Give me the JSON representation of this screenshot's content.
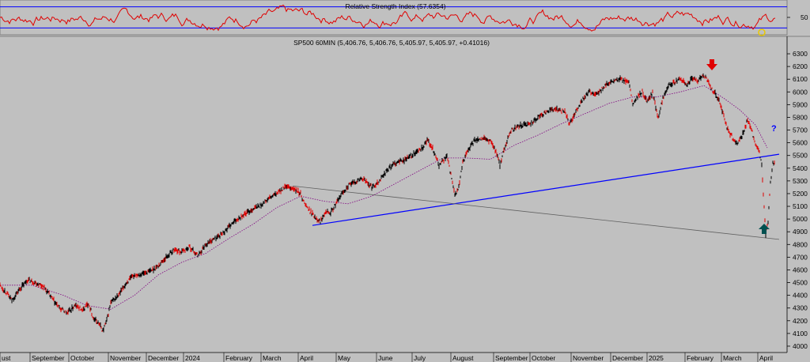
{
  "chart_data": [
    {
      "type": "line",
      "title": "Relative Strength Index (57.6354)",
      "series": [
        {
          "name": "RSI",
          "values": []
        }
      ],
      "ylim": [
        20,
        80
      ],
      "reference_levels": [
        70,
        30
      ],
      "y_tick_labels": [
        "50"
      ],
      "colors": {
        "line": "#e00000",
        "levels": "#0000ff"
      },
      "grid": false
    },
    {
      "type": "line",
      "title": "SP500 60MIN (5,406.76, 5,406.76, 5,405.97, 5,405.97, +0.41016)",
      "xlabel": "",
      "ylabel": "",
      "ylim": [
        3950,
        6350
      ],
      "y_tick_labels": [
        "6300",
        "6200",
        "6100",
        "6000",
        "5900",
        "5800",
        "5700",
        "5600",
        "5500",
        "5400",
        "5300",
        "5200",
        "5100",
        "5000",
        "4900",
        "4800",
        "4700",
        "4600",
        "4500",
        "4400",
        "4300",
        "4200",
        "4100",
        "4000"
      ],
      "x_tick_labels": [
        "ust",
        "September",
        "October",
        "November",
        "December",
        "2024",
        "February",
        "March",
        "April",
        "May",
        "June",
        "July",
        "August",
        "September",
        "October",
        "November",
        "December",
        "2025",
        "February",
        "March",
        "April"
      ],
      "series": [
        {
          "name": "price",
          "points": [
            [
              0,
              4480
            ],
            [
              8,
              4420
            ],
            [
              15,
              4360
            ],
            [
              25,
              4450
            ],
            [
              35,
              4520
            ],
            [
              45,
              4500
            ],
            [
              55,
              4470
            ],
            [
              65,
              4380
            ],
            [
              75,
              4300
            ],
            [
              85,
              4260
            ],
            [
              95,
              4320
            ],
            [
              105,
              4280
            ],
            [
              112,
              4340
            ],
            [
              118,
              4220
            ],
            [
              125,
              4180
            ],
            [
              130,
              4120
            ],
            [
              135,
              4200
            ],
            [
              140,
              4340
            ],
            [
              150,
              4400
            ],
            [
              160,
              4500
            ],
            [
              170,
              4560
            ],
            [
              180,
              4570
            ],
            [
              190,
              4590
            ],
            [
              200,
              4630
            ],
            [
              210,
              4700
            ],
            [
              220,
              4760
            ],
            [
              230,
              4740
            ],
            [
              240,
              4780
            ],
            [
              250,
              4710
            ],
            [
              260,
              4800
            ],
            [
              270,
              4840
            ],
            [
              280,
              4880
            ],
            [
              290,
              4940
            ],
            [
              300,
              5000
            ],
            [
              310,
              5040
            ],
            [
              320,
              5080
            ],
            [
              330,
              5110
            ],
            [
              340,
              5160
            ],
            [
              350,
              5200
            ],
            [
              360,
              5250
            ],
            [
              370,
              5240
            ],
            [
              380,
              5200
            ],
            [
              385,
              5120
            ],
            [
              392,
              5060
            ],
            [
              398,
              5020
            ],
            [
              405,
              4980
            ],
            [
              412,
              5070
            ],
            [
              418,
              5050
            ],
            [
              425,
              5120
            ],
            [
              432,
              5200
            ],
            [
              440,
              5260
            ],
            [
              448,
              5290
            ],
            [
              458,
              5320
            ],
            [
              465,
              5280
            ],
            [
              470,
              5250
            ],
            [
              478,
              5290
            ],
            [
              485,
              5350
            ],
            [
              492,
              5400
            ],
            [
              500,
              5440
            ],
            [
              510,
              5460
            ],
            [
              520,
              5500
            ],
            [
              528,
              5530
            ],
            [
              535,
              5560
            ],
            [
              540,
              5620
            ],
            [
              545,
              5580
            ],
            [
              550,
              5510
            ],
            [
              555,
              5420
            ],
            [
              560,
              5460
            ],
            [
              565,
              5490
            ],
            [
              570,
              5350
            ],
            [
              575,
              5180
            ],
            [
              580,
              5250
            ],
            [
              585,
              5440
            ],
            [
              590,
              5530
            ],
            [
              595,
              5570
            ],
            [
              600,
              5620
            ],
            [
              610,
              5640
            ],
            [
              620,
              5610
            ],
            [
              628,
              5520
            ],
            [
              632,
              5420
            ],
            [
              636,
              5520
            ],
            [
              645,
              5690
            ],
            [
              655,
              5730
            ],
            [
              665,
              5740
            ],
            [
              675,
              5770
            ],
            [
              685,
              5820
            ],
            [
              695,
              5860
            ],
            [
              705,
              5860
            ],
            [
              715,
              5840
            ],
            [
              720,
              5740
            ],
            [
              725,
              5800
            ],
            [
              735,
              5930
            ],
            [
              745,
              6000
            ],
            [
              755,
              5980
            ],
            [
              765,
              6050
            ],
            [
              775,
              6080
            ],
            [
              785,
              6100
            ],
            [
              795,
              6070
            ],
            [
              800,
              5900
            ],
            [
              805,
              5950
            ],
            [
              812,
              6000
            ],
            [
              818,
              5920
            ],
            [
              825,
              5990
            ],
            [
              832,
              5800
            ],
            [
              838,
              5950
            ],
            [
              845,
              6060
            ],
            [
              852,
              6070
            ],
            [
              860,
              6100
            ],
            [
              868,
              6060
            ],
            [
              875,
              6100
            ],
            [
              882,
              6090
            ],
            [
              890,
              6130
            ],
            [
              895,
              6080
            ],
            [
              900,
              6020
            ],
            [
              905,
              5980
            ],
            [
              910,
              5920
            ],
            [
              915,
              5810
            ],
            [
              920,
              5700
            ],
            [
              925,
              5650
            ],
            [
              930,
              5590
            ],
            [
              935,
              5620
            ],
            [
              940,
              5680
            ],
            [
              945,
              5780
            ],
            [
              950,
              5700
            ],
            [
              955,
              5600
            ],
            [
              960,
              5520
            ],
            [
              963,
              5420
            ],
            [
              966,
              5100
            ],
            [
              968,
              4870
            ],
            [
              971,
              4980
            ],
            [
              974,
              5280
            ],
            [
              977,
              5450
            ],
            [
              980,
              5420
            ]
          ]
        },
        {
          "name": "moving-average",
          "points": [
            [
              0,
              4480
            ],
            [
              40,
              4480
            ],
            [
              80,
              4400
            ],
            [
              110,
              4320
            ],
            [
              140,
              4290
            ],
            [
              170,
              4400
            ],
            [
              200,
              4560
            ],
            [
              230,
              4660
            ],
            [
              260,
              4730
            ],
            [
              290,
              4850
            ],
            [
              320,
              4960
            ],
            [
              350,
              5090
            ],
            [
              380,
              5180
            ],
            [
              410,
              5140
            ],
            [
              440,
              5120
            ],
            [
              470,
              5180
            ],
            [
              500,
              5280
            ],
            [
              530,
              5380
            ],
            [
              560,
              5480
            ],
            [
              590,
              5480
            ],
            [
              620,
              5470
            ],
            [
              650,
              5580
            ],
            [
              680,
              5660
            ],
            [
              710,
              5750
            ],
            [
              740,
              5830
            ],
            [
              770,
              5910
            ],
            [
              800,
              5960
            ],
            [
              830,
              5960
            ],
            [
              860,
              6000
            ],
            [
              890,
              6050
            ],
            [
              915,
              5950
            ],
            [
              935,
              5860
            ],
            [
              955,
              5740
            ],
            [
              970,
              5560
            ]
          ]
        }
      ],
      "trendlines": [
        {
          "name": "blue-support-line",
          "color": "#0000ff",
          "points": [
            [
              395,
              4950
            ],
            [
              985,
              5510
            ]
          ]
        },
        {
          "name": "gray-resistance-line",
          "color": "#606060",
          "points": [
            [
              370,
              5260
            ],
            [
              985,
              4840
            ]
          ]
        }
      ],
      "annotations": [
        "?"
      ],
      "colors": {
        "up": "#000000",
        "down": "#e00000",
        "ma": "#800080",
        "background": "#c0c0c0"
      }
    }
  ],
  "icons": {
    "down_arrow": "red-down-arrow-icon",
    "up_arrow": "teal-up-arrow-icon",
    "circle": "yellow-circle-icon"
  }
}
